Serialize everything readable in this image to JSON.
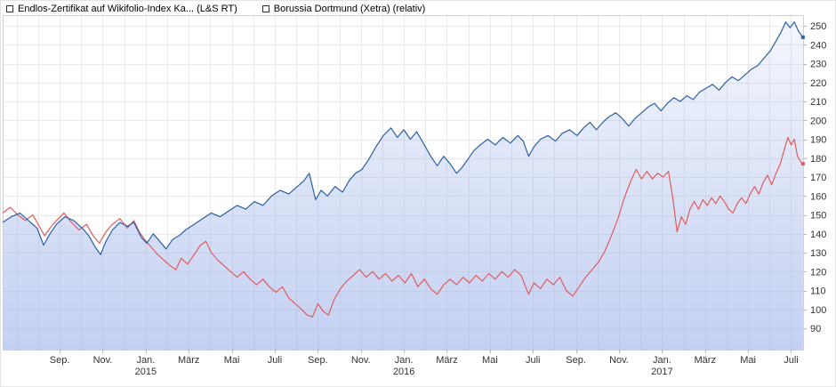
{
  "legend": {
    "items": [
      {
        "label": "Endlos-Zertifikat auf Wikifolio-Index Ka... (L&S RT)",
        "color": "#2b5fa8",
        "border": "#17386b"
      },
      {
        "label": "Borussia Dortmund (Xetra) (relativ)",
        "color": "#d9534f",
        "border": "#8f1f1f"
      }
    ]
  },
  "chart_data": {
    "type": "line",
    "title": "",
    "legend_position": "top-left",
    "x_domain": [
      0,
      37.25
    ],
    "y_range": [
      90,
      250
    ],
    "y_ticks": [
      250,
      240,
      230,
      220,
      210,
      200,
      190,
      180,
      170,
      160,
      150,
      140,
      130,
      120,
      110,
      100,
      90
    ],
    "x_ticks": [
      {
        "m": 2.65,
        "label": "Sep."
      },
      {
        "m": 4.65,
        "label": "Nov."
      },
      {
        "m": 6.65,
        "label": "Jan.",
        "year": "2015"
      },
      {
        "m": 8.65,
        "label": "März"
      },
      {
        "m": 10.65,
        "label": "Mai"
      },
      {
        "m": 12.65,
        "label": "Juli"
      },
      {
        "m": 14.65,
        "label": "Sep."
      },
      {
        "m": 16.65,
        "label": "Nov."
      },
      {
        "m": 18.65,
        "label": "Jan.",
        "year": "2016"
      },
      {
        "m": 20.65,
        "label": "März"
      },
      {
        "m": 22.65,
        "label": "Mai"
      },
      {
        "m": 24.65,
        "label": "Juli"
      },
      {
        "m": 26.65,
        "label": "Sep."
      },
      {
        "m": 28.65,
        "label": "Nov."
      },
      {
        "m": 30.65,
        "label": "Jan.",
        "year": "2017"
      },
      {
        "m": 32.65,
        "label": "März"
      },
      {
        "m": 34.65,
        "label": "Mai"
      },
      {
        "m": 36.65,
        "label": "Juli"
      }
    ],
    "grid": {
      "v_start": 0.65,
      "v_step": 1,
      "color": "#eaeaea",
      "border_color": "#cfcfcf"
    },
    "series": [
      {
        "name": "Endlos-Zertifikat auf Wikifolio-Index Ka... (L&S RT)",
        "color": "#2b5fa8",
        "area_fill": {
          "top": "rgba(140,165,230,0.10)",
          "bottom": "rgba(140,165,230,0.52)"
        },
        "points": [
          [
            0,
            146
          ],
          [
            0.4,
            149
          ],
          [
            0.8,
            151
          ],
          [
            1.2,
            147
          ],
          [
            1.6,
            143
          ],
          [
            1.9,
            134
          ],
          [
            2.2,
            140
          ],
          [
            2.5,
            145
          ],
          [
            2.9,
            149
          ],
          [
            3.3,
            147
          ],
          [
            3.7,
            143
          ],
          [
            4.0,
            139
          ],
          [
            4.3,
            133
          ],
          [
            4.55,
            129
          ],
          [
            4.8,
            136
          ],
          [
            5.1,
            142
          ],
          [
            5.45,
            146
          ],
          [
            5.8,
            144
          ],
          [
            6.1,
            146
          ],
          [
            6.45,
            138
          ],
          [
            6.7,
            135
          ],
          [
            7.0,
            140
          ],
          [
            7.3,
            136
          ],
          [
            7.6,
            132
          ],
          [
            7.9,
            137
          ],
          [
            8.2,
            139
          ],
          [
            8.5,
            142
          ],
          [
            8.9,
            145
          ],
          [
            9.3,
            148
          ],
          [
            9.7,
            151
          ],
          [
            10.1,
            149
          ],
          [
            10.5,
            152
          ],
          [
            10.9,
            155
          ],
          [
            11.3,
            153
          ],
          [
            11.7,
            157
          ],
          [
            12.1,
            155
          ],
          [
            12.5,
            160
          ],
          [
            12.9,
            163
          ],
          [
            13.3,
            161
          ],
          [
            13.7,
            165
          ],
          [
            14.0,
            168
          ],
          [
            14.25,
            172
          ],
          [
            14.55,
            158
          ],
          [
            14.8,
            163
          ],
          [
            15.1,
            160
          ],
          [
            15.45,
            165
          ],
          [
            15.8,
            162
          ],
          [
            16.1,
            168
          ],
          [
            16.4,
            172
          ],
          [
            16.7,
            174
          ],
          [
            17.0,
            179
          ],
          [
            17.35,
            186
          ],
          [
            17.7,
            192
          ],
          [
            18.05,
            196
          ],
          [
            18.35,
            191
          ],
          [
            18.65,
            195
          ],
          [
            18.95,
            190
          ],
          [
            19.25,
            194
          ],
          [
            19.55,
            188
          ],
          [
            19.9,
            181
          ],
          [
            20.2,
            176
          ],
          [
            20.5,
            181
          ],
          [
            20.8,
            177
          ],
          [
            21.1,
            172
          ],
          [
            21.35,
            175
          ],
          [
            21.6,
            179
          ],
          [
            21.9,
            184
          ],
          [
            22.2,
            187
          ],
          [
            22.55,
            190
          ],
          [
            22.9,
            187
          ],
          [
            23.25,
            191
          ],
          [
            23.6,
            188
          ],
          [
            23.95,
            192
          ],
          [
            24.2,
            189
          ],
          [
            24.45,
            181
          ],
          [
            24.7,
            186
          ],
          [
            25.0,
            190
          ],
          [
            25.35,
            192
          ],
          [
            25.7,
            189
          ],
          [
            26.0,
            193
          ],
          [
            26.35,
            195
          ],
          [
            26.7,
            192
          ],
          [
            27.0,
            196
          ],
          [
            27.3,
            199
          ],
          [
            27.6,
            195
          ],
          [
            27.9,
            199
          ],
          [
            28.2,
            202
          ],
          [
            28.5,
            204
          ],
          [
            28.8,
            201
          ],
          [
            29.1,
            197
          ],
          [
            29.4,
            201
          ],
          [
            29.7,
            204
          ],
          [
            30.0,
            207
          ],
          [
            30.3,
            209
          ],
          [
            30.6,
            205
          ],
          [
            30.9,
            209
          ],
          [
            31.2,
            212
          ],
          [
            31.5,
            210
          ],
          [
            31.8,
            213
          ],
          [
            32.1,
            211
          ],
          [
            32.4,
            215
          ],
          [
            32.7,
            217
          ],
          [
            33.0,
            219
          ],
          [
            33.3,
            216
          ],
          [
            33.6,
            220
          ],
          [
            33.9,
            223
          ],
          [
            34.2,
            221
          ],
          [
            34.5,
            224
          ],
          [
            34.8,
            227
          ],
          [
            35.1,
            229
          ],
          [
            35.4,
            233
          ],
          [
            35.7,
            237
          ],
          [
            36.0,
            243
          ],
          [
            36.2,
            247
          ],
          [
            36.4,
            252
          ],
          [
            36.6,
            249
          ],
          [
            36.8,
            252
          ],
          [
            37.0,
            247
          ],
          [
            37.2,
            244
          ]
        ]
      },
      {
        "name": "Borussia Dortmund (Xetra) (relativ)",
        "color": "#e05c5c",
        "points": [
          [
            0,
            151
          ],
          [
            0.35,
            154
          ],
          [
            0.7,
            150
          ],
          [
            1.05,
            147
          ],
          [
            1.4,
            150
          ],
          [
            1.7,
            144
          ],
          [
            1.95,
            139
          ],
          [
            2.2,
            143
          ],
          [
            2.5,
            147
          ],
          [
            2.85,
            151
          ],
          [
            3.2,
            146
          ],
          [
            3.55,
            142
          ],
          [
            3.9,
            145
          ],
          [
            4.2,
            139
          ],
          [
            4.5,
            135
          ],
          [
            4.8,
            141
          ],
          [
            5.1,
            145
          ],
          [
            5.45,
            148
          ],
          [
            5.8,
            143
          ],
          [
            6.1,
            147
          ],
          [
            6.35,
            141
          ],
          [
            6.6,
            137
          ],
          [
            6.9,
            133
          ],
          [
            7.2,
            129
          ],
          [
            7.5,
            126
          ],
          [
            7.8,
            123
          ],
          [
            8.05,
            121
          ],
          [
            8.3,
            127
          ],
          [
            8.6,
            124
          ],
          [
            8.9,
            129
          ],
          [
            9.2,
            134
          ],
          [
            9.45,
            136
          ],
          [
            9.7,
            130
          ],
          [
            10.0,
            126
          ],
          [
            10.3,
            123
          ],
          [
            10.6,
            120
          ],
          [
            10.9,
            117
          ],
          [
            11.2,
            120
          ],
          [
            11.5,
            116
          ],
          [
            11.8,
            113
          ],
          [
            12.1,
            116
          ],
          [
            12.4,
            112
          ],
          [
            12.7,
            109
          ],
          [
            13.0,
            112
          ],
          [
            13.3,
            106
          ],
          [
            13.6,
            103
          ],
          [
            13.9,
            100
          ],
          [
            14.15,
            97
          ],
          [
            14.4,
            96
          ],
          [
            14.65,
            103
          ],
          [
            14.9,
            99
          ],
          [
            15.15,
            97
          ],
          [
            15.4,
            105
          ],
          [
            15.7,
            111
          ],
          [
            16.0,
            115
          ],
          [
            16.3,
            118
          ],
          [
            16.6,
            121
          ],
          [
            16.9,
            117
          ],
          [
            17.2,
            120
          ],
          [
            17.5,
            116
          ],
          [
            17.8,
            119
          ],
          [
            18.1,
            115
          ],
          [
            18.4,
            118
          ],
          [
            18.7,
            114
          ],
          [
            19.0,
            119
          ],
          [
            19.3,
            112
          ],
          [
            19.6,
            116
          ],
          [
            19.9,
            111
          ],
          [
            20.2,
            108
          ],
          [
            20.5,
            113
          ],
          [
            20.8,
            116
          ],
          [
            21.1,
            113
          ],
          [
            21.4,
            117
          ],
          [
            21.7,
            114
          ],
          [
            22.0,
            118
          ],
          [
            22.3,
            115
          ],
          [
            22.6,
            119
          ],
          [
            22.9,
            116
          ],
          [
            23.2,
            120
          ],
          [
            23.5,
            117
          ],
          [
            23.8,
            121
          ],
          [
            24.1,
            118
          ],
          [
            24.45,
            108
          ],
          [
            24.7,
            114
          ],
          [
            25.0,
            111
          ],
          [
            25.3,
            116
          ],
          [
            25.6,
            113
          ],
          [
            25.9,
            117
          ],
          [
            26.2,
            110
          ],
          [
            26.5,
            107
          ],
          [
            26.8,
            112
          ],
          [
            27.1,
            117
          ],
          [
            27.4,
            121
          ],
          [
            27.7,
            125
          ],
          [
            28.0,
            131
          ],
          [
            28.3,
            139
          ],
          [
            28.6,
            148
          ],
          [
            28.9,
            159
          ],
          [
            29.2,
            168
          ],
          [
            29.45,
            174
          ],
          [
            29.7,
            169
          ],
          [
            29.95,
            173
          ],
          [
            30.2,
            169
          ],
          [
            30.45,
            172
          ],
          [
            30.7,
            170
          ],
          [
            30.95,
            173
          ],
          [
            31.15,
            159
          ],
          [
            31.35,
            141
          ],
          [
            31.55,
            149
          ],
          [
            31.75,
            145
          ],
          [
            31.95,
            153
          ],
          [
            32.15,
            157
          ],
          [
            32.35,
            153
          ],
          [
            32.55,
            158
          ],
          [
            32.75,
            155
          ],
          [
            32.95,
            159
          ],
          [
            33.15,
            156
          ],
          [
            33.35,
            160
          ],
          [
            33.55,
            157
          ],
          [
            33.75,
            153
          ],
          [
            33.95,
            151
          ],
          [
            34.15,
            156
          ],
          [
            34.35,
            159
          ],
          [
            34.55,
            156
          ],
          [
            34.75,
            161
          ],
          [
            34.95,
            165
          ],
          [
            35.15,
            161
          ],
          [
            35.35,
            167
          ],
          [
            35.55,
            171
          ],
          [
            35.75,
            166
          ],
          [
            35.95,
            172
          ],
          [
            36.15,
            177
          ],
          [
            36.35,
            185
          ],
          [
            36.5,
            191
          ],
          [
            36.65,
            187
          ],
          [
            36.8,
            190
          ],
          [
            36.95,
            181
          ],
          [
            37.1,
            178
          ],
          [
            37.2,
            177
          ]
        ]
      }
    ]
  }
}
